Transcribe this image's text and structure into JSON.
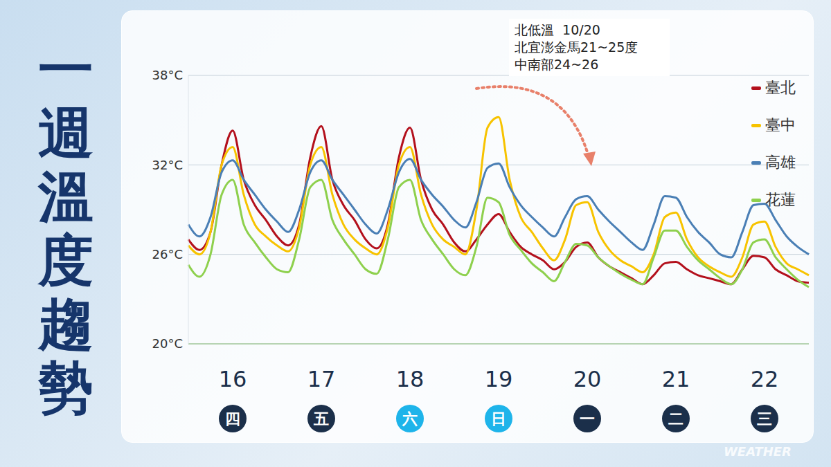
{
  "chart_data": {
    "type": "line",
    "title": "一週溫度趨勢",
    "annotations": [
      "北低溫  10/20",
      "北宜澎金馬21~25度",
      "中南部24~26"
    ],
    "watermark": "WEATHER",
    "categories": [
      null,
      null,
      null,
      null,
      "16",
      null,
      null,
      null,
      null,
      null,
      null,
      null,
      "17",
      null,
      null,
      null,
      null,
      null,
      null,
      null,
      "18",
      null,
      null,
      null,
      null,
      null,
      null,
      null,
      "19",
      null,
      null,
      null,
      null,
      null,
      null,
      null,
      "20",
      null,
      null,
      null,
      null,
      null,
      null,
      null,
      "21",
      null,
      null,
      null,
      null,
      null,
      null,
      null,
      "22",
      null,
      null,
      null,
      null
    ],
    "weekdays": {
      "labels": [
        "四",
        "五",
        "六",
        "日",
        "一",
        "二",
        "三"
      ],
      "colors": [
        "#1b2f4a",
        "#1b2f4a",
        "#1eb4ea",
        "#1eb4ea",
        "#1b2f4a",
        "#1b2f4a",
        "#1b2f4a"
      ]
    },
    "series": [
      {
        "name": "臺北",
        "color": "#b3101c",
        "values": [
          27.0,
          26.3,
          27.5,
          32.0,
          34.3,
          31.0,
          29.3,
          28.3,
          27.2,
          26.6,
          28.0,
          32.5,
          34.6,
          31.0,
          29.3,
          28.3,
          27.0,
          26.4,
          28.0,
          32.5,
          34.5,
          31.0,
          29.0,
          28.0,
          26.8,
          26.2,
          27.0,
          28.0,
          28.7,
          27.5,
          26.5,
          26.0,
          25.6,
          25.0,
          25.5,
          26.5,
          26.8,
          25.8,
          25.2,
          24.8,
          24.4,
          24.0,
          24.6,
          25.4,
          25.5,
          25.0,
          24.6,
          24.4,
          24.2,
          24.0,
          25.0,
          25.9,
          25.8,
          25.0,
          24.6,
          24.2,
          24.1
        ]
      },
      {
        "name": "臺中",
        "color": "#f7c300",
        "values": [
          26.6,
          26.0,
          27.5,
          32.0,
          33.2,
          30.0,
          28.0,
          27.2,
          26.6,
          26.2,
          27.8,
          32.0,
          33.2,
          30.0,
          28.0,
          27.0,
          26.4,
          26.0,
          27.8,
          32.0,
          33.2,
          30.0,
          28.0,
          27.0,
          26.5,
          26.0,
          29.0,
          34.5,
          35.2,
          31.0,
          28.5,
          27.5,
          26.4,
          25.6,
          27.0,
          29.3,
          29.5,
          27.5,
          26.3,
          25.6,
          25.2,
          24.8,
          26.0,
          28.5,
          28.8,
          27.0,
          25.8,
          25.2,
          24.8,
          24.5,
          25.8,
          28.0,
          28.2,
          26.5,
          25.4,
          25.0,
          24.6
        ]
      },
      {
        "name": "高雄",
        "color": "#4a7fb5",
        "values": [
          28.0,
          27.2,
          28.5,
          31.5,
          32.3,
          31.0,
          30.0,
          29.0,
          28.2,
          27.5,
          29.0,
          31.5,
          32.3,
          31.0,
          30.0,
          29.0,
          28.0,
          27.4,
          29.0,
          31.5,
          32.4,
          31.0,
          30.0,
          29.2,
          28.3,
          27.8,
          29.5,
          31.8,
          32.1,
          30.5,
          29.3,
          28.5,
          27.8,
          27.2,
          28.5,
          29.7,
          29.9,
          29.0,
          28.2,
          27.5,
          26.8,
          26.3,
          28.0,
          29.9,
          29.8,
          28.5,
          27.5,
          26.8,
          26.0,
          25.8,
          27.5,
          29.3,
          29.4,
          28.3,
          27.2,
          26.5,
          26.0
        ]
      },
      {
        "name": "花蓮",
        "color": "#8ed04d",
        "values": [
          25.3,
          24.5,
          26.0,
          30.0,
          31.0,
          28.0,
          26.8,
          25.8,
          25.0,
          24.8,
          27.0,
          30.5,
          31.0,
          28.3,
          27.0,
          26.0,
          25.0,
          24.7,
          27.0,
          30.5,
          31.0,
          28.3,
          27.0,
          26.0,
          25.0,
          24.6,
          26.5,
          29.8,
          29.5,
          27.3,
          26.3,
          25.4,
          24.8,
          24.2,
          25.5,
          26.7,
          26.6,
          25.8,
          25.2,
          24.7,
          24.3,
          24.0,
          25.8,
          27.6,
          27.6,
          26.5,
          25.6,
          25.0,
          24.4,
          24.0,
          25.0,
          26.8,
          27.0,
          25.8,
          25.0,
          24.3,
          23.8
        ]
      }
    ],
    "ylim": [
      20,
      38
    ],
    "yticks": [
      {
        "value": 20,
        "label": "20°C"
      },
      {
        "value": 26,
        "label": "26°C"
      },
      {
        "value": 32,
        "label": "32°C"
      },
      {
        "value": 38,
        "label": "38°C"
      }
    ],
    "grid": true,
    "legend": "upper right"
  }
}
